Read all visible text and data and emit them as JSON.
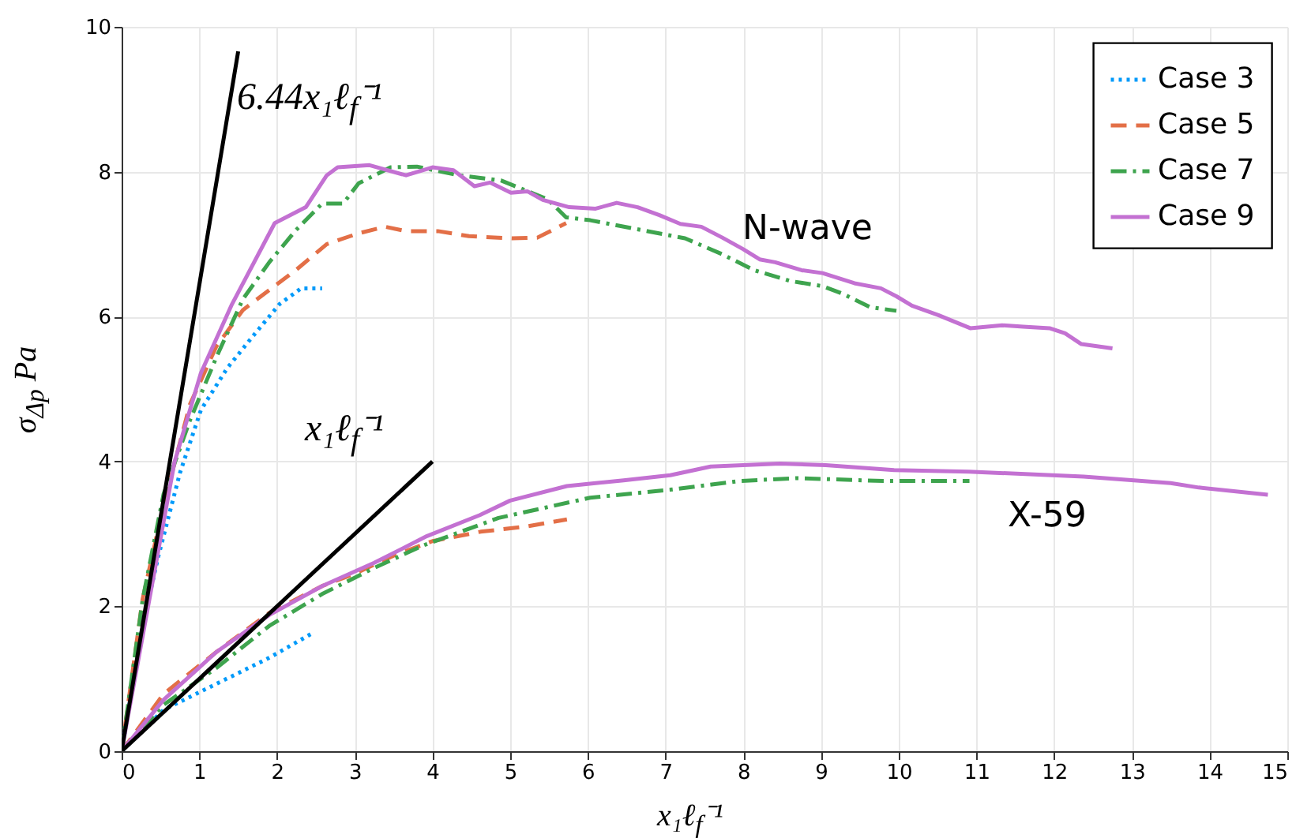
{
  "chart_data": {
    "type": "line",
    "xlabel": "x₁ℓ$_{f}$⁻¹",
    "ylabel": "σ$_{Δp}$ Pa",
    "xlim": [
      0,
      15
    ],
    "xticks": [
      0,
      1,
      2,
      3,
      4,
      5,
      6,
      7,
      8,
      9,
      10,
      11,
      12,
      13,
      14,
      15
    ],
    "ylim": [
      0,
      10
    ],
    "yticks": [
      0,
      2,
      4,
      6,
      8,
      10
    ],
    "grid": true,
    "legend": "top right",
    "annotations": [
      "6.44x₁ℓ$_{f}$⁻¹",
      "x₁ℓ$_{f}$⁻¹",
      "N-wave",
      "X-59"
    ],
    "series": [
      {
        "name": "Case 3",
        "color": "#009afa",
        "line_style": "dotted",
        "x": [
          0,
          0.27,
          0.47,
          0.75,
          1.02,
          1.36,
          1.69,
          2.03,
          2.31,
          2.58
        ],
        "values": [
          0,
          1.73,
          2.68,
          3.84,
          4.71,
          5.29,
          5.73,
          6.17,
          6.39,
          6.39
        ]
      },
      {
        "name": "Case 5",
        "color": "#e36f47",
        "line_style": "dashed",
        "x": [
          0,
          0.27,
          0.54,
          0.88,
          1.22,
          1.56,
          1.83,
          2.24,
          2.64,
          3.05,
          3.39,
          3.66,
          4.07,
          4.47,
          5.02,
          5.35,
          5.72
        ],
        "values": [
          0,
          2.1,
          3.4,
          4.79,
          5.59,
          6.09,
          6.31,
          6.64,
          7.0,
          7.15,
          7.24,
          7.18,
          7.18,
          7.11,
          7.08,
          7.09,
          7.29
        ]
      },
      {
        "name": "Case 7",
        "color": "#3ea44e",
        "line_style": "dashdot",
        "x": [
          0,
          0.27,
          0.54,
          0.88,
          1.22,
          1.56,
          1.9,
          2.24,
          2.58,
          2.85,
          3.05,
          3.46,
          3.8,
          4.34,
          4.88,
          5.48,
          5.72,
          6.03,
          6.57,
          7.25,
          7.73,
          8.14,
          8.61,
          9.02,
          9.29,
          9.63,
          9.97
        ],
        "values": [
          0,
          2.09,
          3.55,
          4.57,
          5.44,
          6.24,
          6.75,
          7.19,
          7.56,
          7.56,
          7.84,
          8.06,
          8.07,
          7.95,
          7.88,
          7.62,
          7.37,
          7.33,
          7.22,
          7.08,
          6.86,
          6.64,
          6.49,
          6.42,
          6.31,
          6.13,
          6.08
        ]
      },
      {
        "name": "Case 9",
        "color": "#c371d2",
        "line_style": "solid",
        "x": [
          0,
          0.68,
          1.02,
          1.42,
          1.97,
          2.37,
          2.64,
          2.78,
          3.19,
          3.66,
          4.0,
          4.27,
          4.54,
          4.74,
          5.01,
          5.22,
          5.42,
          5.76,
          6.1,
          6.37,
          6.64,
          6.92,
          7.19,
          7.46,
          7.73,
          8.0,
          8.21,
          8.41,
          8.75,
          9.02,
          9.43,
          9.77,
          9.97,
          10.17,
          10.51,
          10.92,
          11.33,
          11.6,
          11.94,
          12.14,
          12.35,
          12.75
        ],
        "values": [
          0,
          3.99,
          5.22,
          6.17,
          7.29,
          7.51,
          7.95,
          8.06,
          8.09,
          7.95,
          8.06,
          8.02,
          7.8,
          7.85,
          7.71,
          7.73,
          7.61,
          7.51,
          7.49,
          7.57,
          7.51,
          7.4,
          7.28,
          7.24,
          7.09,
          6.93,
          6.79,
          6.75,
          6.64,
          6.6,
          6.46,
          6.39,
          6.28,
          6.15,
          6.02,
          5.84,
          5.88,
          5.86,
          5.84,
          5.77,
          5.62,
          5.56
        ]
      },
      {
        "color": "#009afa",
        "line_style": "dotted",
        "x": [
          0,
          0.54,
          1.22,
          1.9,
          2.44
        ],
        "values": [
          0,
          0.57,
          0.93,
          1.29,
          1.62
        ]
      },
      {
        "color": "#e36f47",
        "line_style": "dashed",
        "x": [
          0,
          0.54,
          1.22,
          1.9,
          2.58,
          3.0,
          3.5,
          4.0,
          4.62,
          5.2,
          5.73
        ],
        "values": [
          0,
          0.79,
          1.37,
          1.91,
          2.28,
          2.45,
          2.7,
          2.9,
          3.03,
          3.1,
          3.2
        ]
      },
      {
        "color": "#3ea44e",
        "line_style": "dashdot",
        "x": [
          0,
          0.54,
          1.22,
          1.9,
          2.58,
          3.25,
          3.88,
          4.85,
          6.03,
          7.06,
          7.95,
          8.69,
          9.8,
          10.91
        ],
        "values": [
          0,
          0.64,
          1.15,
          1.73,
          2.17,
          2.53,
          2.84,
          3.22,
          3.5,
          3.61,
          3.73,
          3.77,
          3.73,
          3.73
        ]
      },
      {
        "color": "#c371d2",
        "line_style": "solid",
        "x": [
          0,
          0.54,
          1.22,
          1.9,
          2.58,
          3.25,
          3.93,
          4.61,
          5.0,
          5.73,
          6.46,
          7.06,
          7.58,
          8.47,
          9.06,
          9.94,
          10.9,
          12.38,
          13.5,
          13.86,
          14.75
        ],
        "values": [
          0,
          0.71,
          1.37,
          1.88,
          2.28,
          2.6,
          2.97,
          3.26,
          3.46,
          3.66,
          3.74,
          3.81,
          3.93,
          3.97,
          3.95,
          3.88,
          3.86,
          3.79,
          3.7,
          3.64,
          3.54
        ]
      },
      {
        "color": "#000000",
        "line_style": "solid",
        "x": [
          0,
          1.5
        ],
        "values": [
          0,
          9.66
        ]
      },
      {
        "color": "#000000",
        "line_style": "solid",
        "x": [
          0,
          4
        ],
        "values": [
          0,
          4
        ]
      }
    ]
  }
}
